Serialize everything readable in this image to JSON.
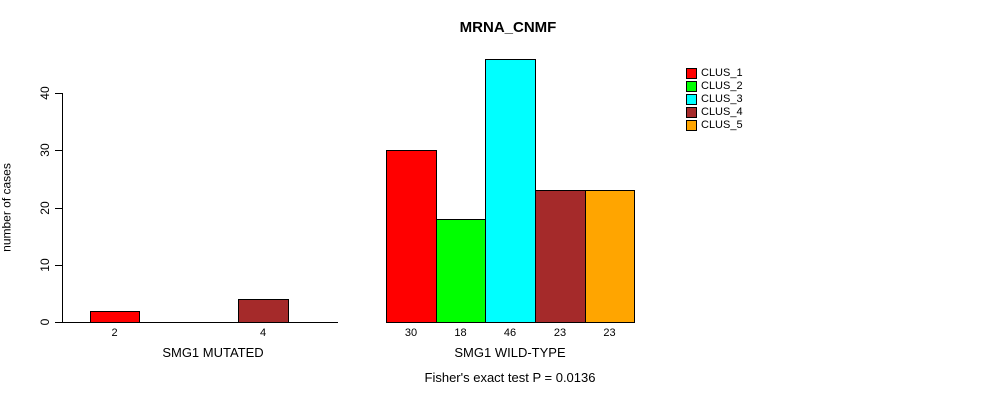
{
  "title": "MRNA_CNMF",
  "y_axis": {
    "label": "number of cases",
    "ticks": [
      "0",
      "10",
      "20",
      "30",
      "40"
    ]
  },
  "groups": [
    {
      "label": "SMG1 MUTATED"
    },
    {
      "label": "SMG1 WILD-TYPE"
    }
  ],
  "legend": {
    "items": [
      {
        "label": "CLUS_1",
        "color": "#FF0000"
      },
      {
        "label": "CLUS_2",
        "color": "#00FF00"
      },
      {
        "label": "CLUS_3",
        "color": "#00FFFF"
      },
      {
        "label": "CLUS_4",
        "color": "#A52A2A"
      },
      {
        "label": "CLUS_5",
        "color": "#FFA500"
      }
    ]
  },
  "footer": "Fisher's exact test P = 0.0136",
  "chart_data": {
    "type": "bar",
    "title": "MRNA_CNMF",
    "xlabel": "",
    "ylabel": "number of cases",
    "ylim": [
      0,
      46
    ],
    "yticks": [
      0,
      10,
      20,
      30,
      40
    ],
    "grid": false,
    "legend_position": "right",
    "categories": [
      "SMG1 MUTATED",
      "SMG1 WILD-TYPE"
    ],
    "series": [
      {
        "name": "CLUS_1",
        "color": "#FF0000",
        "values": [
          2,
          30
        ]
      },
      {
        "name": "CLUS_2",
        "color": "#00FF00",
        "values": [
          0,
          18
        ]
      },
      {
        "name": "CLUS_3",
        "color": "#00FFFF",
        "values": [
          0,
          46
        ]
      },
      {
        "name": "CLUS_4",
        "color": "#A52A2A",
        "values": [
          4,
          23
        ]
      },
      {
        "name": "CLUS_5",
        "color": "#FFA500",
        "values": [
          0,
          23
        ]
      }
    ],
    "bar_value_labels": [
      [
        2,
        null,
        null,
        4,
        null
      ],
      [
        30,
        18,
        46,
        23,
        23
      ]
    ],
    "annotation": "Fisher's exact test P = 0.0136"
  }
}
